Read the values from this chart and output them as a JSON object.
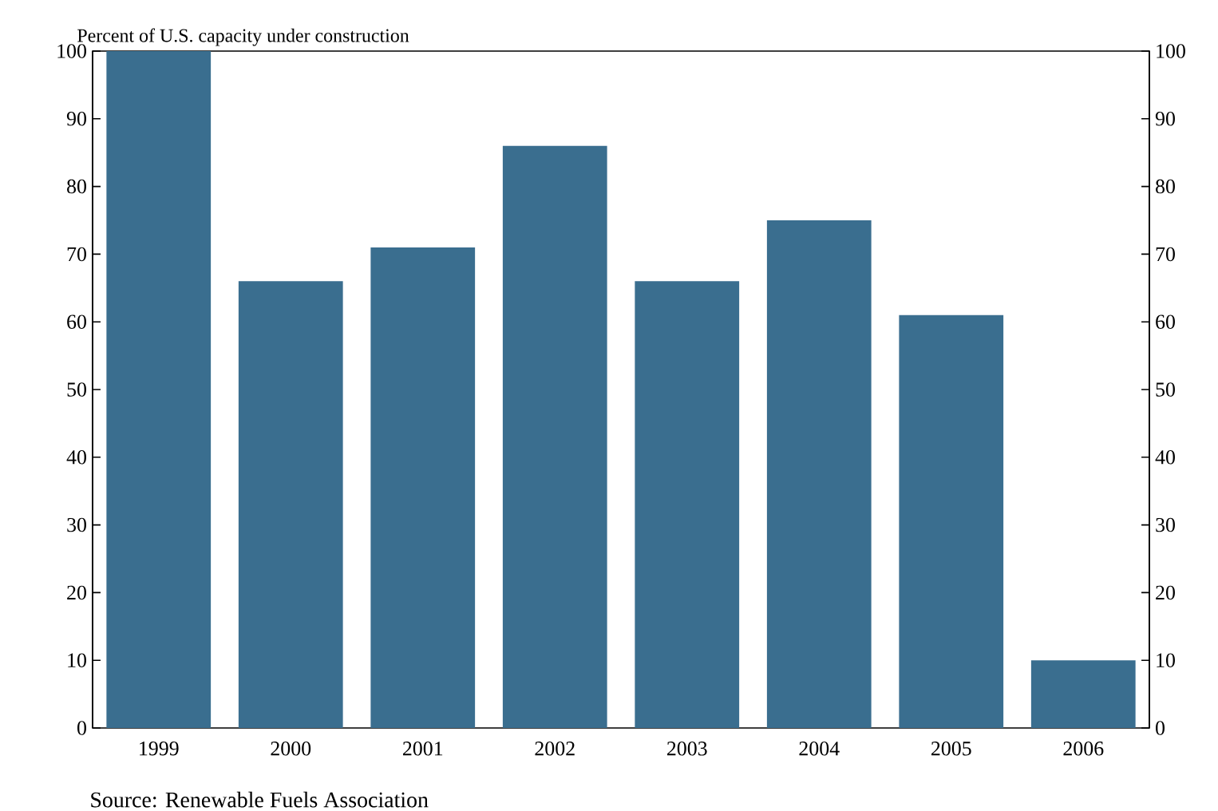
{
  "chart_data": {
    "type": "bar",
    "ylabel": "Percent of U.S. capacity under construction",
    "categories": [
      "1999",
      "2000",
      "2001",
      "2002",
      "2003",
      "2004",
      "2005",
      "2006"
    ],
    "values": [
      100,
      66,
      71,
      86,
      66,
      75,
      61,
      10
    ],
    "color": "#3a6e8f",
    "ylim": [
      0,
      100
    ],
    "yticks": [
      0,
      10,
      20,
      30,
      40,
      50,
      60,
      70,
      80,
      90,
      100
    ],
    "y2lim": [
      0,
      100
    ],
    "y2ticks": [
      0,
      10,
      20,
      30,
      40,
      50,
      60,
      70,
      80,
      90,
      100
    ],
    "grid": false,
    "annotations": [
      "Source: Renewable Fuels Association"
    ]
  }
}
